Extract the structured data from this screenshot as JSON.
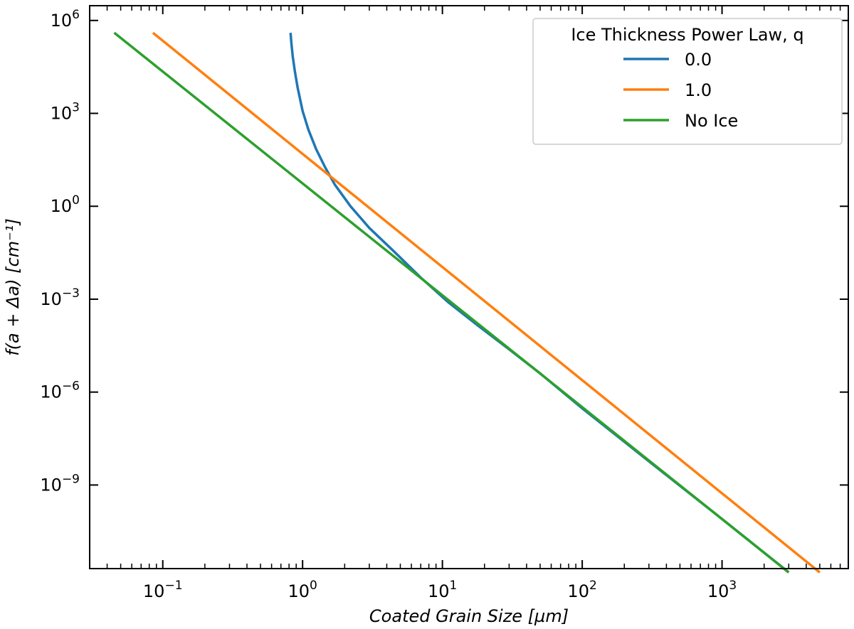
{
  "chart_data": {
    "type": "line",
    "xscale": "log",
    "yscale": "log",
    "xlim": [
      0.03,
      8000
    ],
    "ylim": [
      2e-12,
      3000000.0
    ],
    "xlabel": "Coated Grain Size [µm]",
    "ylabel": "f(a + Δa) [cm⁻¹]",
    "x_ticks": [
      {
        "value": 0.1,
        "base": "10",
        "exp": "−1"
      },
      {
        "value": 1,
        "base": "10",
        "exp": "0"
      },
      {
        "value": 10,
        "base": "10",
        "exp": "1"
      },
      {
        "value": 100,
        "base": "10",
        "exp": "2"
      },
      {
        "value": 1000,
        "base": "10",
        "exp": "3"
      }
    ],
    "y_ticks": [
      {
        "value": 1000000.0,
        "base": "10",
        "exp": "6"
      },
      {
        "value": 1000.0,
        "base": "10",
        "exp": "3"
      },
      {
        "value": 1,
        "base": "10",
        "exp": "0"
      },
      {
        "value": 0.001,
        "base": "10",
        "exp": "−3"
      },
      {
        "value": 1e-06,
        "base": "10",
        "exp": "−6"
      },
      {
        "value": 1e-09,
        "base": "10",
        "exp": "−9"
      }
    ],
    "legend": {
      "title": "Ice Thickness Power Law, q",
      "placement": "top-right"
    },
    "grid": false,
    "series": [
      {
        "name": "0.0",
        "color": "#1f77b4",
        "points": [
          [
            0.82,
            400000.0
          ],
          [
            0.83,
            200000.0
          ],
          [
            0.85,
            70000.0
          ],
          [
            0.88,
            23000.0
          ],
          [
            0.92,
            7000.0
          ],
          [
            1.0,
            1200.0
          ],
          [
            1.1,
            300
          ],
          [
            1.25,
            70
          ],
          [
            1.45,
            18
          ],
          [
            1.7,
            5
          ],
          [
            2.2,
            1
          ],
          [
            3.0,
            0.2
          ],
          [
            4.5,
            0.035
          ],
          [
            7.0,
            0.005
          ],
          [
            11,
            0.0008
          ],
          [
            18,
            0.00014
          ],
          [
            30,
            2.4e-05
          ],
          [
            50,
            4e-06
          ],
          [
            100,
            3e-07
          ],
          [
            300,
            5.8e-09
          ],
          [
            1000,
            8e-11
          ],
          [
            3000,
            1.5e-12
          ]
        ]
      },
      {
        "name": "1.0",
        "color": "#ff7f0e",
        "points": [
          [
            0.085,
            400000.0
          ],
          [
            5000,
            1.5e-12
          ]
        ]
      },
      {
        "name": "No Ice",
        "color": "#2ca02c",
        "points": [
          [
            0.045,
            400000.0
          ],
          [
            3000,
            1.5e-12
          ]
        ]
      }
    ]
  }
}
